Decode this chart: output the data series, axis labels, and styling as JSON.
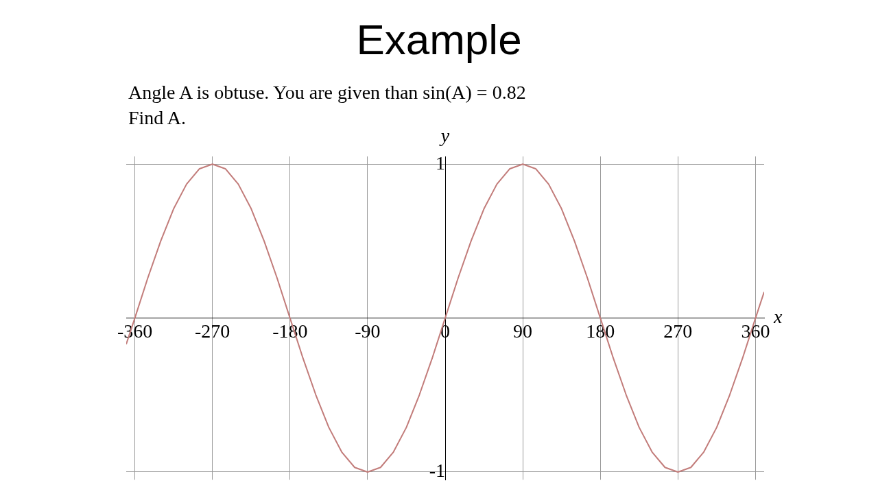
{
  "chart_data": {
    "type": "line",
    "title": "Example",
    "annotations": [
      "Angle A is obtuse. You are given than sin(A) = 0.82",
      "Find A."
    ],
    "xlabel": "x",
    "ylabel": "y",
    "x": [
      -370,
      -360,
      -345,
      -330,
      -315,
      -300,
      -285,
      -270,
      -255,
      -240,
      -225,
      -210,
      -195,
      -180,
      -165,
      -150,
      -135,
      -120,
      -105,
      -90,
      -75,
      -60,
      -45,
      -30,
      -15,
      0,
      15,
      30,
      45,
      60,
      75,
      90,
      105,
      120,
      135,
      150,
      165,
      180,
      195,
      210,
      225,
      240,
      255,
      270,
      285,
      300,
      315,
      330,
      345,
      360,
      370
    ],
    "series": [
      {
        "color": "#c27c7a",
        "values": [
          -0.17,
          0,
          0.26,
          0.5,
          0.71,
          0.87,
          0.97,
          1,
          0.97,
          0.87,
          0.71,
          0.5,
          0.26,
          0,
          -0.26,
          -0.5,
          -0.71,
          -0.87,
          -0.97,
          -1,
          -0.97,
          -0.87,
          -0.71,
          -0.5,
          -0.26,
          0,
          0.26,
          0.5,
          0.71,
          0.87,
          0.97,
          1,
          0.97,
          0.87,
          0.71,
          0.5,
          0.26,
          0,
          -0.26,
          -0.5,
          -0.71,
          -0.87,
          -0.97,
          -1,
          -0.97,
          -0.87,
          -0.71,
          -0.5,
          -0.26,
          0,
          0.17
        ]
      }
    ],
    "xlim": [
      -370,
      370
    ],
    "ylim": [
      -1.05,
      1.05
    ],
    "xticks": [
      -360,
      -270,
      -180,
      -90,
      0,
      90,
      180,
      270,
      360
    ],
    "yticks": [
      -1,
      1
    ],
    "grid": true,
    "marker": "none",
    "line_style": "solid",
    "legend": false
  }
}
